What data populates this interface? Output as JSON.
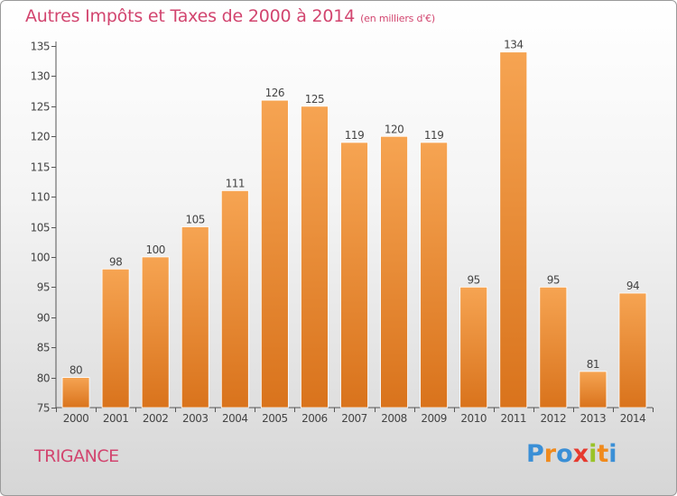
{
  "chart_data": {
    "type": "bar",
    "title": "Autres Impôts et Taxes de 2000 à 2014",
    "subtitle": "(en milliers d'€)",
    "categories": [
      "2000",
      "2001",
      "2002",
      "2003",
      "2004",
      "2005",
      "2006",
      "2007",
      "2008",
      "2009",
      "2010",
      "2011",
      "2012",
      "2013",
      "2014"
    ],
    "values": [
      80,
      98,
      100,
      105,
      111,
      126,
      125,
      119,
      120,
      119,
      95,
      134,
      95,
      81,
      94
    ],
    "ylim": [
      75,
      135
    ],
    "yticks": [
      75,
      80,
      85,
      90,
      95,
      100,
      105,
      110,
      115,
      120,
      125,
      130,
      135
    ],
    "grid": false,
    "xlabel": "",
    "ylabel": "",
    "colors": {
      "bar_top": "#f6a452",
      "bar_bottom": "#d9731c",
      "text": "#444444",
      "title": "#d2456f"
    }
  },
  "commune": "TRIGANCE",
  "logo": {
    "text": "Proxiti",
    "letter_colors": [
      "#3a8fd6",
      "#f08a1c",
      "#3a8fd6",
      "#e63a2f",
      "#9ac328",
      "#f08a1c",
      "#3a8fd6"
    ]
  }
}
